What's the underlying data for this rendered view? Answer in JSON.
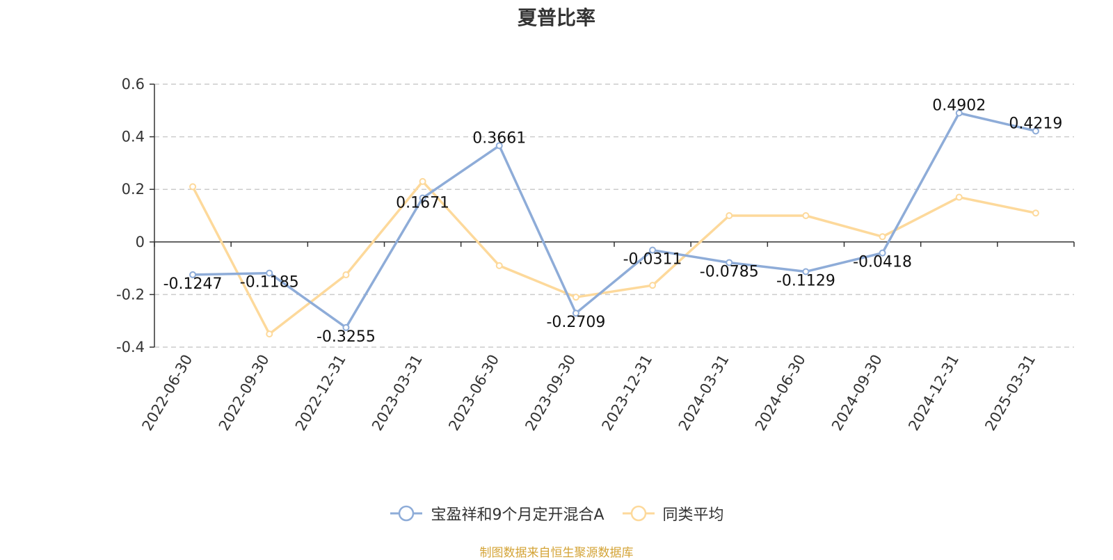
{
  "chart_data": {
    "type": "line",
    "title": "夏普比率",
    "categories": [
      "2022-06-30",
      "2022-09-30",
      "2022-12-31",
      "2023-03-31",
      "2023-06-30",
      "2023-09-30",
      "2023-12-31",
      "2024-03-31",
      "2024-06-30",
      "2024-09-30",
      "2024-12-31",
      "2025-03-31"
    ],
    "series": [
      {
        "name": "宝盈祥和9个月定开混合A",
        "color": "#8eacd8",
        "values": [
          -0.1247,
          -0.1185,
          -0.3255,
          0.1671,
          0.3661,
          -0.2709,
          -0.0311,
          -0.0785,
          -0.1129,
          -0.0418,
          0.4902,
          0.4219
        ],
        "labels": [
          "-0.1247",
          "-0.1185",
          "-0.3255",
          "0.1671",
          "0.3661",
          "-0.2709",
          "-0.0311",
          "-0.0785",
          "-0.1129",
          "-0.0418",
          "0.4902",
          "0.4219"
        ]
      },
      {
        "name": "同类平均",
        "color": "#fdd99b",
        "values": [
          0.21,
          -0.35,
          -0.125,
          0.23,
          -0.09,
          -0.21,
          -0.165,
          0.1,
          0.1,
          0.02,
          0.17,
          0.11
        ]
      }
    ],
    "ylim": [
      -0.4,
      0.6
    ],
    "yticks": [
      -0.4,
      -0.2,
      0,
      0.2,
      0.4,
      0.6
    ],
    "ytick_labels": [
      "-0.4",
      "-0.2",
      "0",
      "0.2",
      "0.4",
      "0.6"
    ],
    "grid": true,
    "legend_position": "bottom"
  },
  "source_note": "制图数据来自恒生聚源数据库",
  "colors": {
    "source_note": "#d4a437",
    "axis": "#333333",
    "grid": "#cccccc"
  }
}
